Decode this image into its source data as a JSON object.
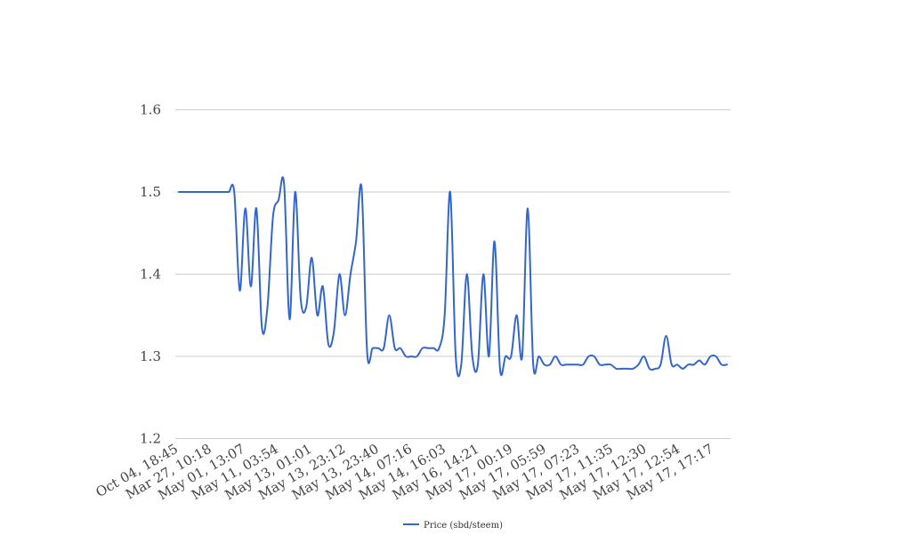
{
  "chart_data": {
    "type": "line",
    "title": "",
    "xlabel": "",
    "ylabel": "",
    "ylim": [
      1.2,
      1.6
    ],
    "yticks": [
      1.2,
      1.3,
      1.4,
      1.5,
      1.6
    ],
    "ytick_labels": [
      "1.2",
      "1.3",
      "1.4",
      "1.5",
      "1.6"
    ],
    "grid": true,
    "legend_position": "bottom",
    "x_tick_labels": [
      "Oct 04, 18:45",
      "Mar 27, 10:18",
      "May 01, 13:07",
      "May 11, 03:54",
      "May 13, 01:01",
      "May 13, 23:12",
      "May 13, 23:40",
      "May 14, 07:16",
      "May 14, 16:03",
      "May 16, 14:21",
      "May 17, 00:19",
      "May 17, 05:59",
      "May 17, 07:23",
      "May 17, 11:35",
      "May 17, 12:30",
      "May 17, 12:54",
      "May 17, 17:17"
    ],
    "series": [
      {
        "name": "Price (sbd/steem)",
        "color": "#3366cc",
        "values": [
          1.5,
          1.5,
          1.5,
          1.5,
          1.5,
          1.5,
          1.5,
          1.5,
          1.5,
          1.5,
          1.5,
          1.38,
          1.48,
          1.385,
          1.48,
          1.335,
          1.36,
          1.47,
          1.49,
          1.51,
          1.345,
          1.5,
          1.37,
          1.36,
          1.42,
          1.35,
          1.385,
          1.315,
          1.33,
          1.4,
          1.35,
          1.4,
          1.44,
          1.505,
          1.305,
          1.31,
          1.31,
          1.31,
          1.35,
          1.31,
          1.31,
          1.3,
          1.3,
          1.3,
          1.31,
          1.31,
          1.31,
          1.31,
          1.35,
          1.5,
          1.3,
          1.29,
          1.4,
          1.3,
          1.29,
          1.4,
          1.3,
          1.44,
          1.285,
          1.3,
          1.3,
          1.35,
          1.3,
          1.48,
          1.29,
          1.3,
          1.29,
          1.29,
          1.3,
          1.29,
          1.29,
          1.29,
          1.29,
          1.29,
          1.3,
          1.3,
          1.29,
          1.29,
          1.29,
          1.285,
          1.285,
          1.285,
          1.285,
          1.29,
          1.3,
          1.285,
          1.285,
          1.29,
          1.325,
          1.29,
          1.29,
          1.285,
          1.29,
          1.29,
          1.295,
          1.29,
          1.3,
          1.3,
          1.29,
          1.29
        ]
      }
    ]
  }
}
